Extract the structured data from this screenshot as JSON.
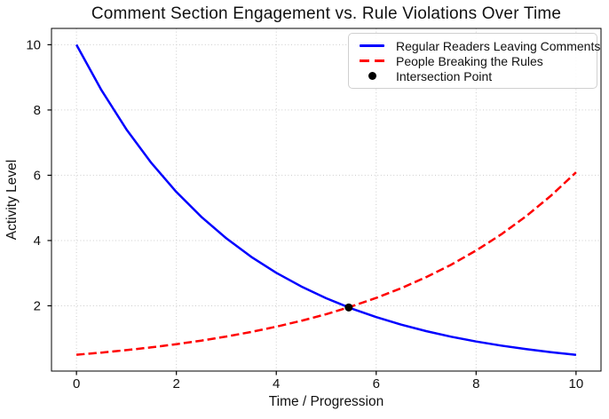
{
  "figure": {
    "background": "#ffffff",
    "text_color": "#111111",
    "spine_color": "#000000"
  },
  "chart_data": {
    "type": "line",
    "title": "Comment Section Engagement vs. Rule Violations Over Time",
    "xlabel": "Time / Progression",
    "ylabel": "Activity Level",
    "xlim": [
      -0.5,
      10.5
    ],
    "ylim": [
      0,
      10.5
    ],
    "xticks": [
      0,
      2,
      4,
      6,
      8,
      10
    ],
    "yticks": [
      2,
      4,
      6,
      8,
      10
    ],
    "grid": {
      "on": true,
      "style": "dotted",
      "color": "#cccccc"
    },
    "legend_position": "upper-right",
    "x": [
      0,
      0.5,
      1,
      1.5,
      2,
      2.5,
      3,
      3.5,
      4,
      4.5,
      5,
      5.5,
      6,
      6.5,
      7,
      7.5,
      8,
      8.5,
      9,
      9.5,
      10
    ],
    "series": [
      {
        "name": "Regular Readers Leaving Comments",
        "color": "#0000ff",
        "line_style": "solid",
        "line_width": 2.5,
        "values": [
          10,
          8.607,
          7.408,
          6.376,
          5.488,
          4.724,
          4.066,
          3.499,
          3.012,
          2.592,
          2.231,
          1.92,
          1.653,
          1.423,
          1.225,
          1.054,
          0.907,
          0.781,
          0.672,
          0.578,
          0.498
        ]
      },
      {
        "name": "People Breaking the Rules",
        "color": "#ff0000",
        "line_style": "dashed",
        "line_width": 2.5,
        "values": [
          0.5,
          0.567,
          0.642,
          0.727,
          0.824,
          0.934,
          1.059,
          1.199,
          1.359,
          1.54,
          1.745,
          1.978,
          2.241,
          2.539,
          2.877,
          3.26,
          3.695,
          4.186,
          4.744,
          5.376,
          6.091
        ]
      }
    ],
    "markers": [
      {
        "name": "Intersection Point",
        "x": 5.45,
        "y": 1.95,
        "color": "#000000",
        "size": 9
      }
    ]
  },
  "legend": {
    "items": [
      {
        "label": "Regular Readers Leaving Comments",
        "swatch": "line-solid",
        "color": "#0000ff"
      },
      {
        "label": "People Breaking the Rules",
        "swatch": "line-dashed",
        "color": "#ff0000"
      },
      {
        "label": "Intersection Point",
        "swatch": "dot",
        "color": "#000000"
      }
    ]
  }
}
